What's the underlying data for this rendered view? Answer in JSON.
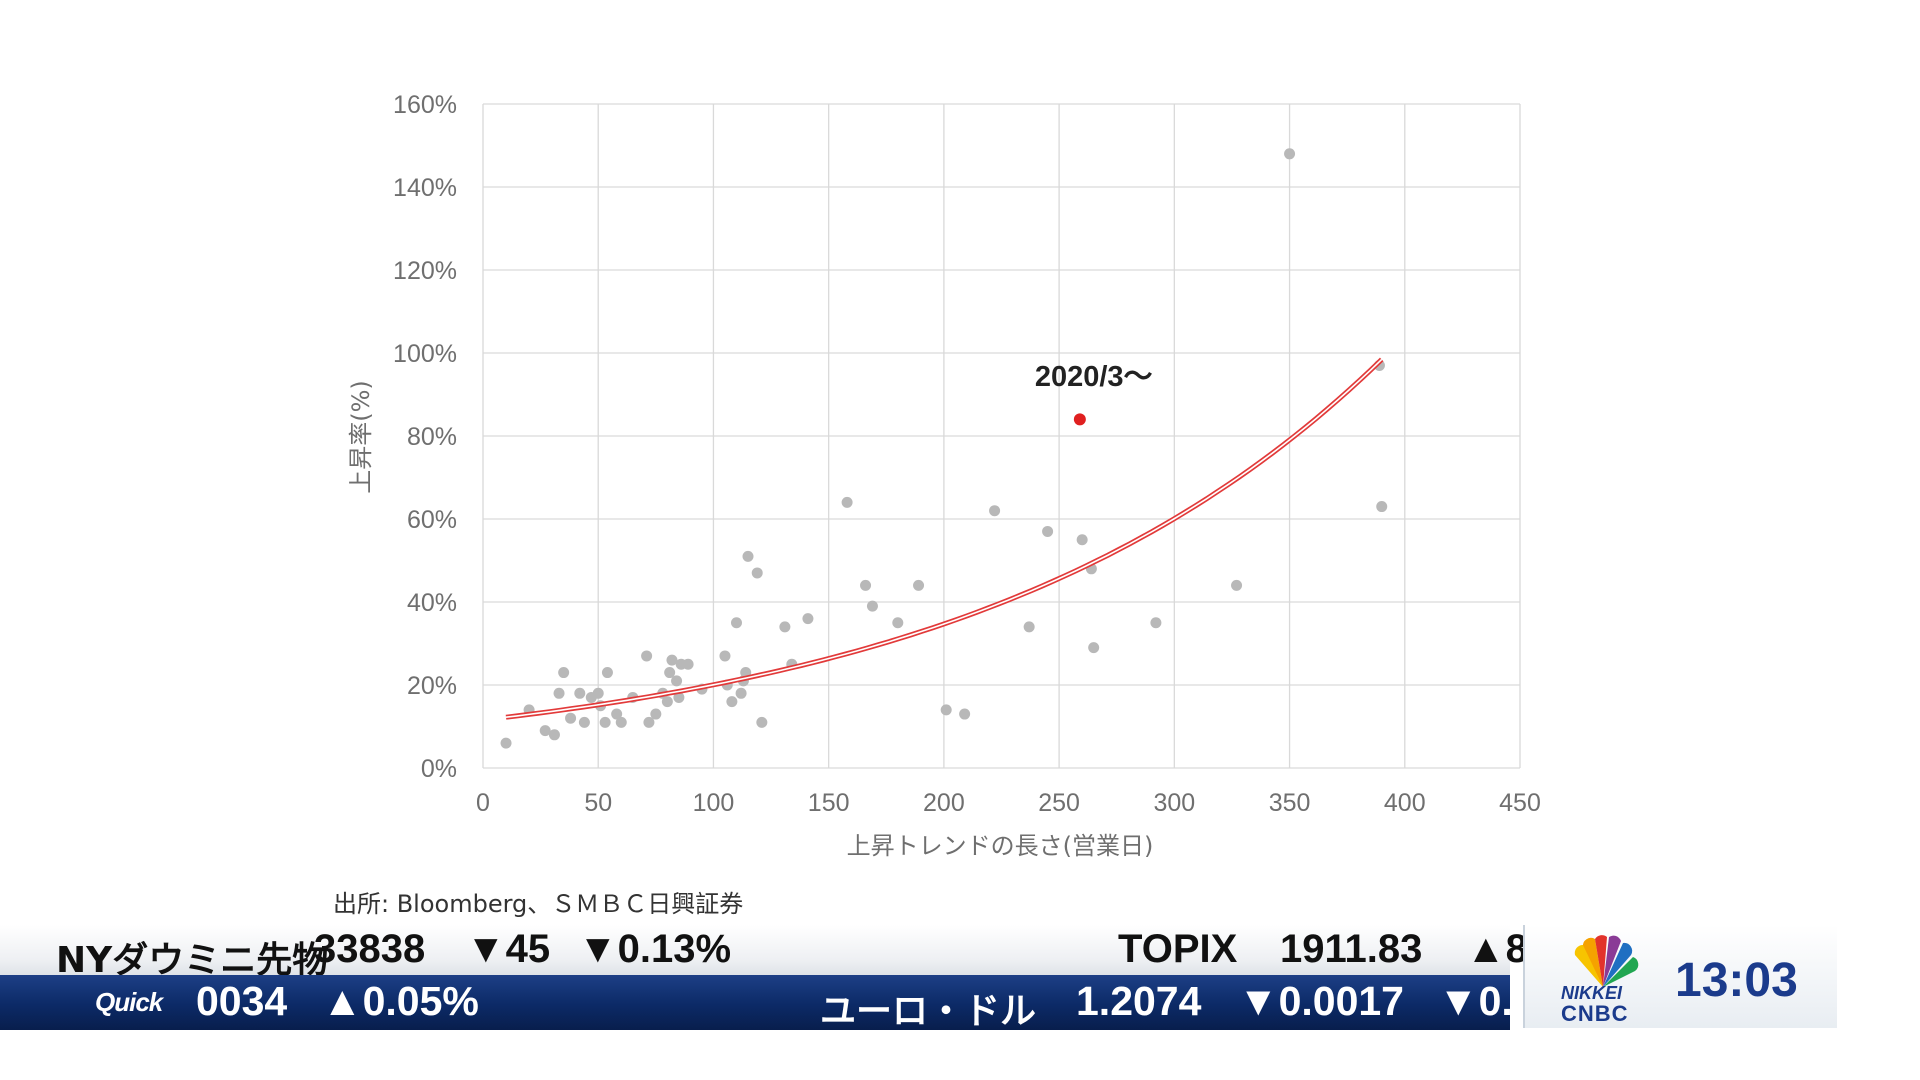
{
  "chart_data": {
    "type": "scatter",
    "title": "",
    "xlabel": "上昇トレンドの長さ(営業日)",
    "ylabel": "上昇率(%)",
    "xlim": [
      0,
      450
    ],
    "ylim": [
      0,
      160
    ],
    "x_ticks": [
      "0",
      "50",
      "100",
      "150",
      "200",
      "250",
      "300",
      "350",
      "400",
      "450"
    ],
    "y_ticks": [
      "0%",
      "20%",
      "40%",
      "60%",
      "80%",
      "100%",
      "120%",
      "140%",
      "160%"
    ],
    "grid": true,
    "series": [
      {
        "color": "#b8b8b8",
        "points": [
          [
            10,
            6
          ],
          [
            20,
            14
          ],
          [
            27,
            9
          ],
          [
            31,
            8
          ],
          [
            33,
            18
          ],
          [
            35,
            23
          ],
          [
            38,
            12
          ],
          [
            42,
            18
          ],
          [
            44,
            11
          ],
          [
            47,
            17
          ],
          [
            50,
            18
          ],
          [
            51,
            15
          ],
          [
            53,
            11
          ],
          [
            54,
            23
          ],
          [
            58,
            13
          ],
          [
            60,
            11
          ],
          [
            65,
            17
          ],
          [
            71,
            27
          ],
          [
            72,
            11
          ],
          [
            75,
            13
          ],
          [
            78,
            18
          ],
          [
            80,
            16
          ],
          [
            81,
            23
          ],
          [
            82,
            26
          ],
          [
            84,
            21
          ],
          [
            85,
            17
          ],
          [
            86,
            25
          ],
          [
            89,
            25
          ],
          [
            95,
            19
          ],
          [
            105,
            27
          ],
          [
            106,
            20
          ],
          [
            108,
            16
          ],
          [
            110,
            35
          ],
          [
            112,
            18
          ],
          [
            113,
            21
          ],
          [
            114,
            23
          ],
          [
            115,
            51
          ],
          [
            119,
            47
          ],
          [
            121,
            11
          ],
          [
            131,
            34
          ],
          [
            134,
            25
          ],
          [
            141,
            36
          ],
          [
            158,
            64
          ],
          [
            166,
            44
          ],
          [
            169,
            39
          ],
          [
            180,
            35
          ],
          [
            189,
            44
          ],
          [
            201,
            14
          ],
          [
            209,
            13
          ],
          [
            222,
            62
          ],
          [
            237,
            34
          ],
          [
            245,
            57
          ],
          [
            260,
            55
          ],
          [
            264,
            48
          ],
          [
            265,
            29
          ],
          [
            292,
            35
          ],
          [
            327,
            44
          ],
          [
            350,
            148
          ],
          [
            389,
            97
          ],
          [
            390,
            63
          ]
        ]
      },
      {
        "name": "2020/3〜",
        "color": "#e02020",
        "points": [
          [
            259,
            84
          ]
        ]
      }
    ],
    "trendline": {
      "type": "exponential",
      "color": "#e23a3a",
      "a": 11.58,
      "b": 0.005488,
      "x_range": [
        10,
        390
      ]
    },
    "annotation": {
      "text": "2020/3〜",
      "x": 265,
      "y": 92
    }
  },
  "source": "出所: Bloomberg、ＳＭＢＣ日興証券",
  "ticker": {
    "row1": [
      {
        "name": "NYダウミニ先物",
        "value": "33838",
        "change": "▼45",
        "pct": "▼0.13%"
      },
      {
        "name": "TOPIX",
        "value": "1911.83",
        "change": "▲8"
      }
    ],
    "row2": [
      {
        "logo": "Quick",
        "value": "0034",
        "change": "▲0.05%"
      },
      {
        "name": "ユーロ・ドル",
        "value": "1.2074",
        "change": "▼0.0017",
        "pct": "▼0."
      }
    ]
  },
  "brand": {
    "nikkei": "NIKKEI",
    "cnbc": "CNBC",
    "clock": "13:03"
  },
  "colors": {
    "up": "#e0203a",
    "down": "#1ea3e6",
    "ticker_blue": "#0c2a66",
    "brand_blue": "#1b3b8c"
  }
}
